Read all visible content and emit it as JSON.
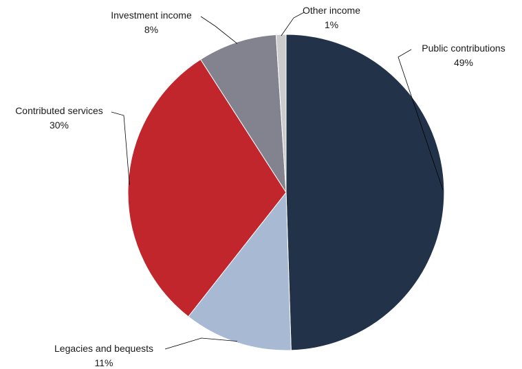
{
  "chart_data": {
    "type": "pie",
    "title": "",
    "slices": [
      {
        "label": "Public contributions",
        "value": 49,
        "value_label": "49%",
        "color": "#213249"
      },
      {
        "label": "Legacies and bequests",
        "value": 11,
        "value_label": "11%",
        "color": "#a7b9d3"
      },
      {
        "label": "Contributed services",
        "value": 30,
        "value_label": "30%",
        "color": "#c1262d"
      },
      {
        "label": "Investment income",
        "value": 8,
        "value_label": "8%",
        "color": "#83838f"
      },
      {
        "label": "Other income",
        "value": 1,
        "value_label": "1%",
        "color": "#cccccc"
      }
    ],
    "legend": "none",
    "label_style": "callouts with leader lines"
  }
}
